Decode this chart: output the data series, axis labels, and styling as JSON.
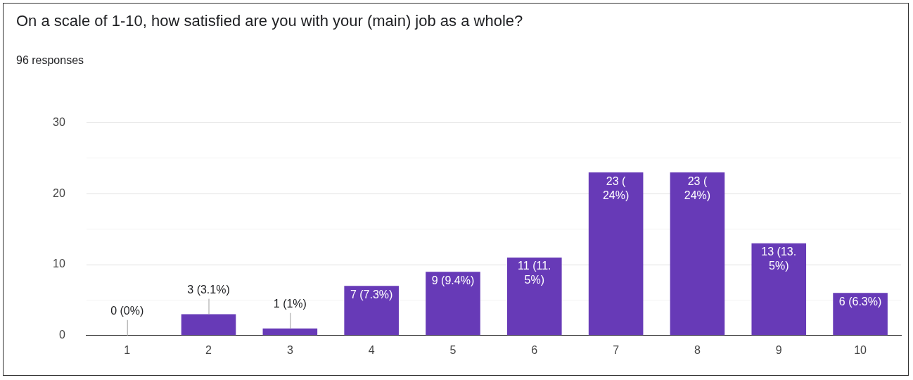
{
  "chart_data": {
    "type": "bar",
    "title": "On a scale of 1-10, how satisfied are you with your (main) job as a whole?",
    "subtitle": "96 responses",
    "categories": [
      "1",
      "2",
      "3",
      "4",
      "5",
      "6",
      "7",
      "8",
      "9",
      "10"
    ],
    "values": [
      0,
      3,
      1,
      7,
      9,
      11,
      23,
      23,
      13,
      6
    ],
    "value_labels": [
      "0 (0%)",
      "3 (3.1%)",
      "1 (1%)",
      "7 (7.3%)",
      "9 (9.4%)",
      "11 (11.5%)",
      "23 (24%)",
      "23 (24%)",
      "13 (13.5%)",
      "6 (6.3%)"
    ],
    "color": "#673ab7",
    "ylim": [
      0,
      30
    ],
    "yticks": [
      0,
      {
        "value": 5,
        "label": null
      },
      10,
      {
        "value": 15,
        "label": null
      },
      20,
      {
        "value": 25,
        "label": null
      },
      30
    ],
    "grid": "y",
    "legend": false
  }
}
